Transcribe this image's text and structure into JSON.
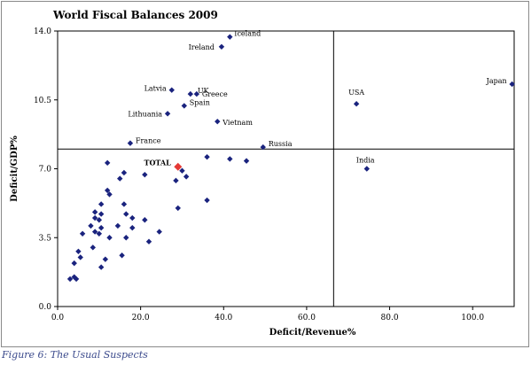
{
  "caption": "Figure 6: The Usual Suspects",
  "chart_data": {
    "type": "scatter",
    "title": "World Fiscal Balances 2009",
    "xlabel": "Deficit/Revenue%",
    "ylabel": "Deficit/GDP%",
    "xlim": [
      0,
      110
    ],
    "ylim": [
      0,
      14
    ],
    "xticks": [
      "0.0",
      "20.0",
      "40.0",
      "60.0",
      "80.0",
      "100.0"
    ],
    "xtick_values": [
      0,
      20,
      40,
      60,
      80,
      100
    ],
    "yticks": [
      "0.0",
      "3.5",
      "7.0",
      "10.5",
      "14.0"
    ],
    "ytick_values": [
      0,
      3.5,
      7,
      10.5,
      14
    ],
    "grid": false,
    "reference_lines": {
      "x": 66.5,
      "y": 8.0
    },
    "colors": {
      "points": "#1a237e",
      "total": "#e53935",
      "text": "#000000"
    },
    "labeled_points": [
      {
        "label": "Iceland",
        "x": 41.5,
        "y": 13.7
      },
      {
        "label": "Ireland",
        "x": 39.5,
        "y": 13.2
      },
      {
        "label": "Japan",
        "x": 109.5,
        "y": 11.3
      },
      {
        "label": "USA",
        "x": 72.0,
        "y": 10.3
      },
      {
        "label": "Latvia",
        "x": 27.5,
        "y": 11.0
      },
      {
        "label": "UK",
        "x": 32.0,
        "y": 10.8
      },
      {
        "label": "Greece",
        "x": 33.5,
        "y": 10.8
      },
      {
        "label": "Spain",
        "x": 30.5,
        "y": 10.2
      },
      {
        "label": "Lithuania",
        "x": 26.5,
        "y": 9.8
      },
      {
        "label": "Vietnam",
        "x": 38.5,
        "y": 9.4
      },
      {
        "label": "Russia",
        "x": 49.5,
        "y": 8.1
      },
      {
        "label": "France",
        "x": 17.5,
        "y": 8.3
      },
      {
        "label": "India",
        "x": 74.5,
        "y": 7.0
      }
    ],
    "total_point": {
      "label": "TOTAL",
      "x": 29.0,
      "y": 7.1
    },
    "points": [
      [
        30.0,
        6.9
      ],
      [
        31.0,
        6.6
      ],
      [
        28.5,
        6.4
      ],
      [
        36.0,
        7.6
      ],
      [
        41.5,
        7.5
      ],
      [
        45.5,
        7.4
      ],
      [
        36.0,
        5.4
      ],
      [
        29.0,
        5.0
      ],
      [
        21.0,
        6.7
      ],
      [
        12.0,
        7.3
      ],
      [
        16.0,
        6.8
      ],
      [
        15.0,
        6.5
      ],
      [
        12.0,
        5.9
      ],
      [
        12.5,
        5.7
      ],
      [
        10.5,
        5.2
      ],
      [
        16.0,
        5.2
      ],
      [
        9.0,
        4.8
      ],
      [
        10.5,
        4.7
      ],
      [
        16.5,
        4.7
      ],
      [
        9.0,
        4.5
      ],
      [
        10.0,
        4.4
      ],
      [
        18.0,
        4.5
      ],
      [
        21.0,
        4.4
      ],
      [
        8.0,
        4.1
      ],
      [
        10.5,
        4.0
      ],
      [
        14.5,
        4.1
      ],
      [
        18.0,
        4.0
      ],
      [
        9.0,
        3.8
      ],
      [
        10.0,
        3.7
      ],
      [
        6.0,
        3.7
      ],
      [
        16.5,
        3.5
      ],
      [
        12.5,
        3.5
      ],
      [
        24.5,
        3.8
      ],
      [
        22.0,
        3.3
      ],
      [
        8.5,
        3.0
      ],
      [
        5.0,
        2.8
      ],
      [
        11.5,
        2.4
      ],
      [
        15.5,
        2.6
      ],
      [
        5.5,
        2.5
      ],
      [
        10.5,
        2.0
      ],
      [
        4.0,
        2.2
      ],
      [
        3.0,
        1.4
      ],
      [
        4.0,
        1.5
      ],
      [
        4.5,
        1.4
      ]
    ]
  }
}
